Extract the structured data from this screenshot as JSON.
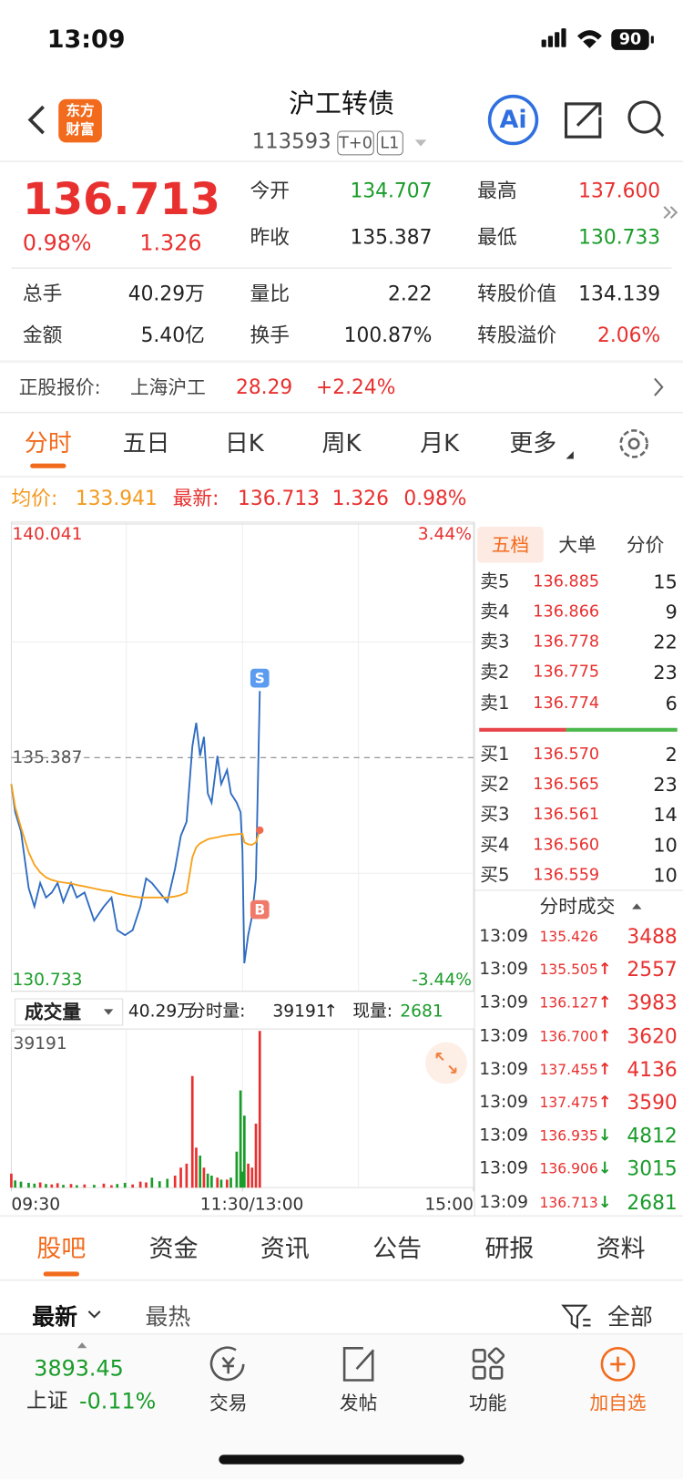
{
  "status": {
    "time": "13:09",
    "battery": "90"
  },
  "header": {
    "title": "沪工转债",
    "code": "113593",
    "badges": [
      "T+0",
      "L1"
    ],
    "logo": [
      "东方",
      "财富"
    ],
    "ai": "Ai"
  },
  "quote": {
    "price": "136.713",
    "change_pct": "0.98%",
    "change": "1.326",
    "stats": [
      {
        "label": "今开",
        "value": "134.707",
        "color": "#1a9c2a"
      },
      {
        "label": "最高",
        "value": "137.600",
        "color": "#e8302f"
      },
      {
        "label": "昨收",
        "value": "135.387",
        "color": "#222222"
      },
      {
        "label": "最低",
        "value": "130.733",
        "color": "#1a9c2a"
      }
    ],
    "details": [
      {
        "label": "总手",
        "value": "40.29万",
        "color": "#222222"
      },
      {
        "label": "量比",
        "value": "2.22",
        "color": "#222222"
      },
      {
        "label": "转股价值",
        "value": "134.139",
        "color": "#222222"
      },
      {
        "label": "金额",
        "value": "5.40亿",
        "color": "#222222"
      },
      {
        "label": "换手",
        "value": "100.87%",
        "color": "#222222"
      },
      {
        "label": "转股溢价",
        "value": "2.06%",
        "color": "#e8302f"
      }
    ]
  },
  "stock": {
    "label": "正股报价:",
    "name": "上海沪工",
    "price": "28.29",
    "change_pct": "+2.24%"
  },
  "tabs": [
    "分时",
    "五日",
    "日K",
    "周K",
    "月K",
    "更多"
  ],
  "summary": {
    "avg_label": "均价:",
    "avg": "133.941",
    "last_label": "最新:",
    "last": "136.713",
    "change": "1.326",
    "change_pct": "0.98%"
  },
  "volume_bar": {
    "selector": "成交量",
    "total": "40.29万",
    "minute_label": "分时量:",
    "minute": "39191",
    "arrow": "↑",
    "now_label": "现量:",
    "now": "2681"
  },
  "chart_data": [
    {
      "type": "line",
      "x": [
        0,
        2,
        5,
        9,
        12,
        15,
        18,
        21,
        24,
        27,
        31,
        34,
        38,
        43,
        48,
        52,
        55,
        59,
        63,
        67,
        70,
        73,
        77,
        81,
        85,
        88,
        91,
        94,
        96,
        98,
        100,
        102,
        104,
        107,
        109,
        112,
        114,
        117,
        119,
        120,
        121,
        123,
        125,
        127,
        129
      ],
      "series": [
        {
          "color": "#2e6cc0",
          "values": [
            134.86,
            134.3,
            133.92,
            132.79,
            132.42,
            132.89,
            132.6,
            132.7,
            132.89,
            132.51,
            132.89,
            132.6,
            132.7,
            132.14,
            132.42,
            132.6,
            131.95,
            131.85,
            131.95,
            132.42,
            132.98,
            132.89,
            132.7,
            132.51,
            133.17,
            133.83,
            134.11,
            135.61,
            136.08,
            135.42,
            135.8,
            134.67,
            134.49,
            135.42,
            134.86,
            135.14,
            134.67,
            134.49,
            134.3,
            133.54,
            131.29,
            131.85,
            132.23,
            132.98,
            136.713
          ]
        },
        {
          "color": "#f7a21b",
          "values": [
            134.86,
            134.4,
            134.0,
            133.5,
            133.25,
            133.1,
            133.0,
            132.95,
            132.92,
            132.9,
            132.88,
            132.85,
            132.82,
            132.78,
            132.74,
            132.72,
            132.68,
            132.65,
            132.62,
            132.6,
            132.6,
            132.6,
            132.6,
            132.6,
            132.62,
            132.65,
            132.7,
            133.4,
            133.6,
            133.68,
            133.72,
            133.76,
            133.78,
            133.8,
            133.82,
            133.84,
            133.85,
            133.86,
            133.87,
            133.87,
            133.7,
            133.66,
            133.65,
            133.7,
            133.941
          ]
        }
      ],
      "xlim": [
        0,
        240
      ],
      "xticks": [
        {
          "value": 0,
          "label": "09:30"
        },
        {
          "value": 120,
          "label": "11:30/13:00"
        },
        {
          "value": 240,
          "label": "15:00"
        }
      ],
      "ylim": [
        130.733,
        140.041
      ],
      "yticks": [
        130.733,
        135.387,
        140.041
      ],
      "y2lim": [
        -3.44,
        3.44
      ],
      "y2ticks": [
        {
          "value": -3.44,
          "label": "-3.44%"
        },
        {
          "value": 3.44,
          "label": "3.44%"
        }
      ],
      "annotations": [
        {
          "text": "S",
          "x": 129,
          "y": 136.97,
          "color": "#5b9cf0"
        },
        {
          "text": "B",
          "x": 129,
          "y": 132.36,
          "color": "#f07a6a"
        }
      ],
      "up_color": "#e8302f",
      "down_color": "#1a9c2a"
    },
    {
      "type": "bar",
      "x": [
        0,
        2,
        5,
        9,
        12,
        15,
        18,
        21,
        24,
        27,
        31,
        34,
        38,
        43,
        48,
        52,
        55,
        59,
        63,
        67,
        70,
        73,
        77,
        81,
        85,
        88,
        91,
        94,
        96,
        98,
        100,
        102,
        104,
        107,
        109,
        112,
        114,
        117,
        119,
        120,
        121,
        123,
        125,
        127,
        129
      ],
      "values": [
        3500,
        1800,
        1500,
        1200,
        1000,
        1300,
        900,
        800,
        1100,
        700,
        900,
        600,
        800,
        700,
        1000,
        600,
        900,
        1200,
        800,
        1500,
        1300,
        2500,
        1600,
        2200,
        3000,
        5000,
        6000,
        27900,
        10000,
        8000,
        5000,
        3500,
        3000,
        2500,
        2000,
        2000,
        2500,
        9000,
        24300,
        4000,
        18000,
        6000,
        5000,
        16000,
        39191
      ],
      "xlim": [
        0,
        240
      ],
      "ylim": [
        0,
        39191
      ],
      "yticks": [
        39191
      ],
      "up_color": "#e8302f",
      "down_color": "#1a9c2a"
    }
  ],
  "order_book": {
    "tabs": [
      "五档",
      "大单",
      "分价"
    ],
    "asks": [
      [
        "卖5",
        "136.885",
        "15"
      ],
      [
        "卖4",
        "136.866",
        "9"
      ],
      [
        "卖3",
        "136.778",
        "22"
      ],
      [
        "卖2",
        "136.775",
        "23"
      ],
      [
        "卖1",
        "136.774",
        "6"
      ]
    ],
    "bids": [
      [
        "买1",
        "136.570",
        "2"
      ],
      [
        "买2",
        "136.565",
        "23"
      ],
      [
        "买3",
        "136.561",
        "14"
      ],
      [
        "买4",
        "136.560",
        "10"
      ],
      [
        "买5",
        "136.559",
        "10"
      ]
    ]
  },
  "trades": {
    "title": "分时成交",
    "rows": [
      {
        "time": "13:09",
        "price": "135.426",
        "volume": "3488"
      },
      {
        "time": "13:09",
        "price": "135.505",
        "arrow": "↑",
        "volume": "2557"
      },
      {
        "time": "13:09",
        "price": "136.127",
        "arrow": "↑",
        "volume": "3983"
      },
      {
        "time": "13:09",
        "price": "136.700",
        "arrow": "↑",
        "volume": "3620"
      },
      {
        "time": "13:09",
        "price": "137.455",
        "arrow": "↑",
        "volume": "4136"
      },
      {
        "time": "13:09",
        "price": "137.475",
        "arrow": "↑",
        "volume": "3590"
      },
      {
        "time": "13:09",
        "price": "136.935",
        "arrow": "↓",
        "volume": "4812"
      },
      {
        "time": "13:09",
        "price": "136.906",
        "arrow": "↓",
        "volume": "3015"
      },
      {
        "time": "13:09",
        "price": "136.713",
        "arrow": "↓",
        "volume": "2681"
      }
    ]
  },
  "sections": [
    "股吧",
    "资金",
    "资讯",
    "公告",
    "研报",
    "资料"
  ],
  "filter": {
    "sort": [
      "最新",
      "最热"
    ],
    "scope": "全部"
  },
  "nav": {
    "index_value": "3893.45",
    "index_name": "上证",
    "index_change": "-0.11%",
    "items": [
      "交易",
      "发帖",
      "功能",
      "加自选"
    ]
  }
}
